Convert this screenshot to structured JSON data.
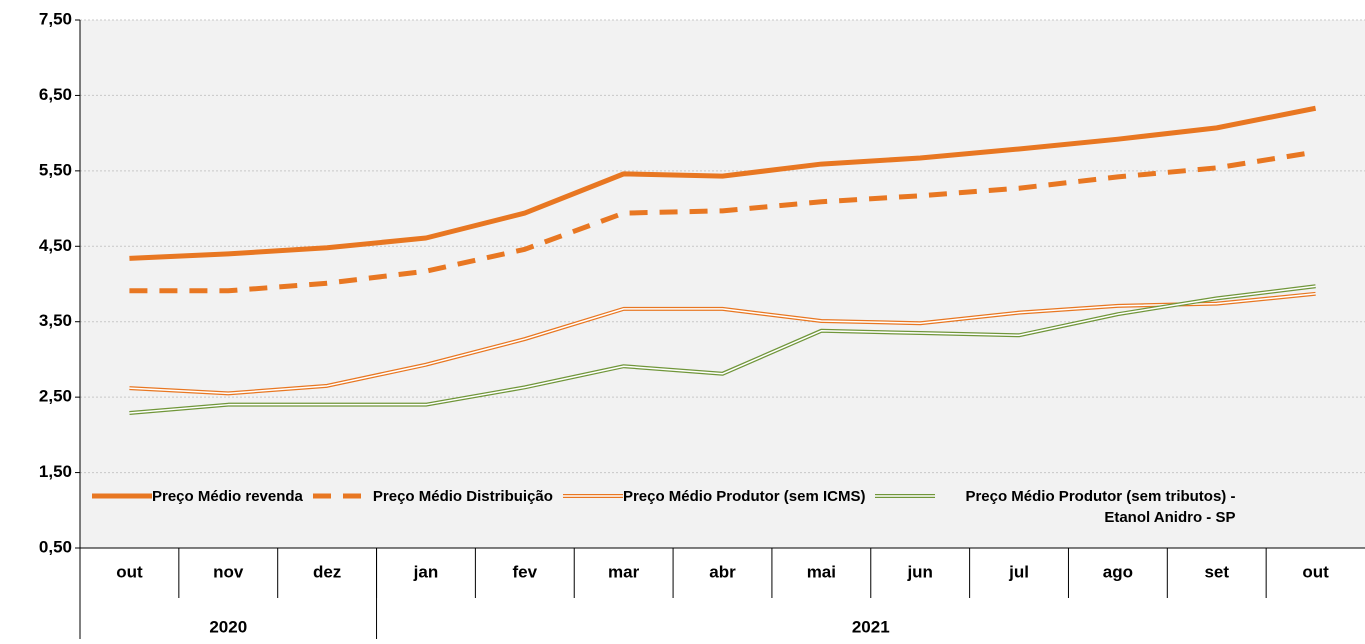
{
  "chart_data": {
    "type": "line",
    "categories": [
      "out",
      "nov",
      "dez",
      "jan",
      "fev",
      "mar",
      "abr",
      "mai",
      "jun",
      "jul",
      "ago",
      "set",
      "out"
    ],
    "groups": [
      {
        "label": "2020",
        "count": 3
      },
      {
        "label": "2021",
        "count": 10
      }
    ],
    "ylim": [
      0.5,
      7.5
    ],
    "yticks": [
      {
        "value": 0.5,
        "label": "0,50"
      },
      {
        "value": 1.5,
        "label": "1,50"
      },
      {
        "value": 2.5,
        "label": "2,50"
      },
      {
        "value": 3.5,
        "label": "3,50"
      },
      {
        "value": 4.5,
        "label": "4,50"
      },
      {
        "value": 5.5,
        "label": "5,50"
      },
      {
        "value": 6.5,
        "label": "6,50"
      },
      {
        "value": 7.5,
        "label": "7,50"
      }
    ],
    "grid": true,
    "series": [
      {
        "name": "Preço Médio revenda",
        "color": "#e87722",
        "style": "solid",
        "values": [
          4.34,
          4.4,
          4.48,
          4.61,
          4.94,
          5.46,
          5.43,
          5.59,
          5.67,
          5.79,
          5.92,
          6.07,
          6.33
        ]
      },
      {
        "name": "Preço Médio Distribuição",
        "color": "#e87722",
        "style": "dashed",
        "values": [
          3.91,
          3.91,
          4.01,
          4.17,
          4.46,
          4.94,
          4.97,
          5.09,
          5.17,
          5.27,
          5.42,
          5.54,
          5.75
        ]
      },
      {
        "name": "Preço Médio Produtor (sem ICMS)",
        "color": "#e87722",
        "style": "double",
        "values": [
          2.62,
          2.55,
          2.65,
          2.93,
          3.27,
          3.67,
          3.67,
          3.51,
          3.48,
          3.62,
          3.71,
          3.74,
          3.87
        ]
      },
      {
        "name": "Preço Médio Produtor (sem tributos) - Etanol Anidro - SP",
        "color": "#70963a",
        "style": "double",
        "values": [
          2.29,
          2.4,
          2.4,
          2.4,
          2.63,
          2.91,
          2.81,
          3.38,
          3.35,
          3.32,
          3.6,
          3.81,
          3.97
        ]
      }
    ]
  }
}
